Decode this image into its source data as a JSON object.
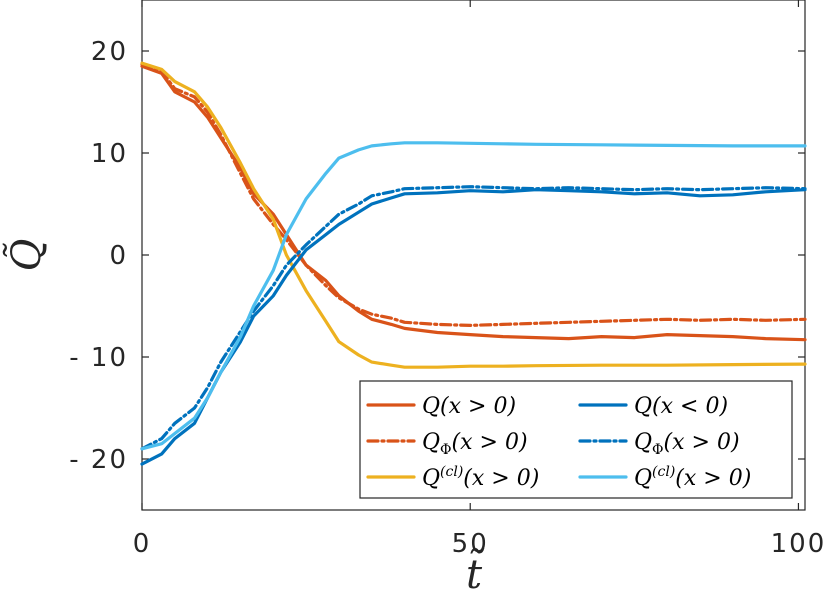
{
  "chart_data": {
    "type": "line",
    "title": "",
    "xlabel": "t̃",
    "ylabel": "Q̃",
    "xlim": [
      0,
      101
    ],
    "ylim": [
      -25,
      25
    ],
    "xticks": [
      0,
      50,
      100
    ],
    "yticks": [
      20,
      10,
      0,
      -10,
      -20
    ],
    "ytick_labels": [
      "20",
      "10",
      "0",
      "- 10",
      "- 20"
    ],
    "xtick_labels": [
      "0",
      "50",
      "100"
    ],
    "grid": false,
    "legend_position": "lower-right",
    "series": [
      {
        "name": "Q(x > 0)",
        "legend_base": "Q",
        "legend_sup": "",
        "legend_sub": "",
        "legend_rest": "(x > 0)",
        "color": "#D95319",
        "style": "solid",
        "x": [
          0,
          3,
          5,
          8,
          10,
          12,
          15,
          17,
          20,
          22,
          25,
          28,
          30,
          33,
          35,
          38,
          40,
          45,
          50,
          55,
          60,
          65,
          70,
          75,
          80,
          85,
          90,
          95,
          101
        ],
        "y": [
          18.5,
          17.8,
          16.0,
          15.0,
          13.5,
          11.5,
          8.5,
          6.0,
          4.0,
          2.0,
          -1.0,
          -2.5,
          -4.0,
          -5.5,
          -6.3,
          -6.8,
          -7.2,
          -7.6,
          -7.8,
          -8.0,
          -8.1,
          -8.2,
          -8.0,
          -8.1,
          -7.8,
          -7.9,
          -8.0,
          -8.2,
          -8.3
        ]
      },
      {
        "name": "Q_Phi(x > 0)",
        "legend_base": "Q",
        "legend_sup": "",
        "legend_sub": "Φ",
        "legend_rest": "(x > 0)",
        "color": "#D95319",
        "style": "dashdot",
        "x": [
          0,
          3,
          5,
          8,
          10,
          12,
          15,
          17,
          20,
          22,
          25,
          28,
          30,
          33,
          35,
          38,
          40,
          45,
          50,
          55,
          60,
          65,
          70,
          75,
          80,
          85,
          90,
          95,
          101
        ],
        "y": [
          18.7,
          18.0,
          16.3,
          15.5,
          14.0,
          11.8,
          8.0,
          5.5,
          3.0,
          1.5,
          -1.0,
          -3.0,
          -4.2,
          -5.3,
          -5.8,
          -6.2,
          -6.6,
          -6.8,
          -6.9,
          -6.8,
          -6.7,
          -6.6,
          -6.5,
          -6.4,
          -6.3,
          -6.4,
          -6.3,
          -6.4,
          -6.3
        ]
      },
      {
        "name": "Q^(cl)(x > 0)",
        "legend_base": "Q",
        "legend_sup": "(cl)",
        "legend_sub": "",
        "legend_rest": "(x > 0)",
        "color": "#EDB120",
        "style": "solid",
        "x": [
          0,
          3,
          5,
          8,
          10,
          12,
          15,
          17,
          20,
          22,
          25,
          28,
          30,
          33,
          35,
          38,
          40,
          45,
          50,
          55,
          60,
          70,
          80,
          90,
          101
        ],
        "y": [
          18.8,
          18.2,
          17.0,
          16.0,
          14.5,
          12.5,
          9.0,
          6.5,
          3.5,
          0.0,
          -3.5,
          -6.5,
          -8.5,
          -9.8,
          -10.5,
          -10.8,
          -11.0,
          -11.0,
          -10.9,
          -10.9,
          -10.85,
          -10.8,
          -10.8,
          -10.75,
          -10.7
        ]
      },
      {
        "name": "Q(x < 0)",
        "legend_base": "Q",
        "legend_sup": "",
        "legend_sub": "",
        "legend_rest": "(x < 0)",
        "color": "#0072BD",
        "style": "solid",
        "x": [
          0,
          3,
          5,
          8,
          10,
          12,
          15,
          17,
          20,
          22,
          25,
          28,
          30,
          33,
          35,
          38,
          40,
          45,
          50,
          55,
          60,
          65,
          70,
          75,
          80,
          85,
          90,
          95,
          101
        ],
        "y": [
          -20.5,
          -19.5,
          -18.0,
          -16.5,
          -14.0,
          -11.5,
          -8.5,
          -6.0,
          -4.0,
          -2.0,
          0.5,
          2.0,
          3.0,
          4.2,
          5.0,
          5.6,
          6.0,
          6.1,
          6.3,
          6.2,
          6.4,
          6.3,
          6.2,
          6.0,
          6.1,
          5.8,
          5.9,
          6.2,
          6.4
        ]
      },
      {
        "name": "Q_Phi(x > 0)",
        "legend_base": "Q",
        "legend_sup": "",
        "legend_sub": "Φ",
        "legend_rest": "(x > 0)",
        "color": "#0072BD",
        "style": "dashdot",
        "x": [
          0,
          3,
          5,
          8,
          10,
          12,
          15,
          17,
          20,
          22,
          25,
          28,
          30,
          33,
          35,
          38,
          40,
          45,
          50,
          55,
          60,
          65,
          70,
          75,
          80,
          85,
          90,
          95,
          101
        ],
        "y": [
          -19.0,
          -18.0,
          -16.5,
          -15.0,
          -13.0,
          -10.5,
          -7.5,
          -5.5,
          -3.0,
          -1.0,
          1.0,
          2.8,
          4.0,
          5.0,
          5.8,
          6.2,
          6.5,
          6.6,
          6.7,
          6.6,
          6.5,
          6.6,
          6.5,
          6.4,
          6.5,
          6.4,
          6.5,
          6.6,
          6.5
        ]
      },
      {
        "name": "Q^(cl)(x > 0)",
        "legend_base": "Q",
        "legend_sup": "(cl)",
        "legend_sub": "",
        "legend_rest": "(x > 0)",
        "color": "#4DBEEE",
        "style": "solid",
        "x": [
          0,
          3,
          5,
          8,
          10,
          12,
          15,
          17,
          20,
          22,
          25,
          28,
          30,
          33,
          35,
          38,
          40,
          45,
          50,
          55,
          60,
          70,
          80,
          90,
          101
        ],
        "y": [
          -19.0,
          -18.5,
          -17.5,
          -16.0,
          -14.0,
          -11.5,
          -8.0,
          -5.0,
          -1.5,
          2.0,
          5.5,
          8.0,
          9.5,
          10.3,
          10.7,
          10.9,
          11.0,
          11.0,
          10.95,
          10.9,
          10.85,
          10.8,
          10.75,
          10.7,
          10.7
        ]
      }
    ]
  }
}
